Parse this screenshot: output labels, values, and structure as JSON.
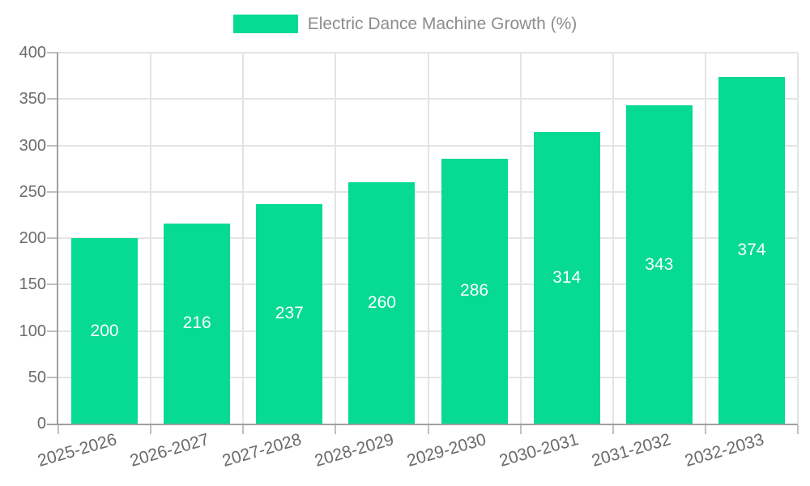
{
  "chart_data": {
    "type": "bar",
    "title": "Electric Dance Machine Growth (%)",
    "categories": [
      "2025-2026",
      "2026-2027",
      "2027-2028",
      "2028-2029",
      "2029-2030",
      "2030-2031",
      "2031-2032",
      "2032-2033"
    ],
    "values": [
      200,
      216,
      237,
      260,
      286,
      314,
      343,
      374
    ],
    "xlabel": "",
    "ylabel": "",
    "ylim": [
      0,
      400
    ],
    "ytick_step": 50,
    "ytick_labels": [
      "0",
      "50",
      "100",
      "150",
      "200",
      "250",
      "300",
      "350",
      "400"
    ],
    "grid": true,
    "legend_position": "top",
    "value_labels_shown": true,
    "value_label_position": "center-of-bar"
  },
  "colors": {
    "bar": "#06da93",
    "value_label": "#ffffff",
    "legend_text": "#8c8c8c",
    "tick_label": "#6b6b6b",
    "axis_line": "#a0a0a0",
    "gridline": "#e4e4e4",
    "tick_mark": "#c0c0c0",
    "background": "#ffffff"
  }
}
